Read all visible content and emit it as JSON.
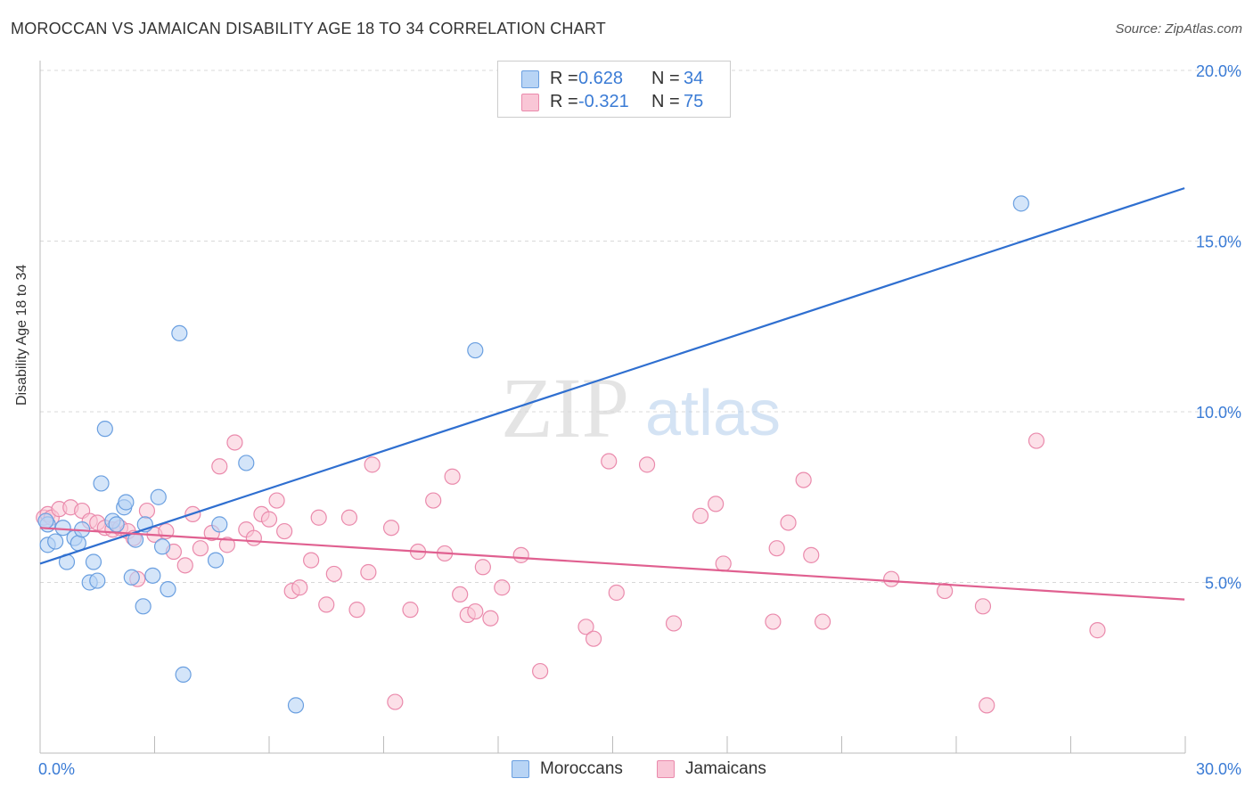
{
  "title": "MOROCCAN VS JAMAICAN DISABILITY AGE 18 TO 34 CORRELATION CHART",
  "source": "Source: ZipAtlas.com",
  "watermark": {
    "zip": "ZIP",
    "atlas": "atlas"
  },
  "legend": {
    "rows": [
      {
        "r_label": "R =",
        "r_value": "0.628",
        "n_label": "N =",
        "n_value": "34"
      },
      {
        "r_label": "R =",
        "r_value": "-0.321",
        "n_label": "N =",
        "n_value": "75"
      }
    ]
  },
  "colors": {
    "moroccans_fill": "#b8d4f5",
    "moroccans_stroke": "#6a9fe0",
    "moroccans_line": "#2f6fd0",
    "jamaicans_fill": "#f9c6d6",
    "jamaicans_stroke": "#ea8aac",
    "jamaicans_line": "#e06090",
    "axis_label": "#3a7bd5",
    "grid": "#d8d8d8"
  },
  "chart_data": {
    "type": "scatter",
    "title": "MOROCCAN VS JAMAICAN DISABILITY AGE 18 TO 34 CORRELATION CHART",
    "xlabel": "",
    "ylabel": "Disability Age 18 to 34",
    "xlim": [
      0,
      30
    ],
    "ylim": [
      0,
      20
    ],
    "x_tick_labels": [
      "0.0%",
      "30.0%"
    ],
    "y_ticks": [
      5,
      10,
      15,
      20
    ],
    "y_tick_labels": [
      "5.0%",
      "10.0%",
      "15.0%",
      "20.0%"
    ],
    "grid": true,
    "series": [
      {
        "name": "Moroccans",
        "color": "#6a9fe0",
        "r": 0.628,
        "n": 34,
        "trend": {
          "x": [
            0,
            29.98
          ],
          "y": [
            5.55,
            16.55
          ]
        },
        "points": [
          [
            0.2,
            6.7
          ],
          [
            0.2,
            6.1
          ],
          [
            0.4,
            6.2
          ],
          [
            0.6,
            6.6
          ],
          [
            0.7,
            5.6
          ],
          [
            0.9,
            6.3
          ],
          [
            1.0,
            6.15
          ],
          [
            1.1,
            6.55
          ],
          [
            1.3,
            5.0
          ],
          [
            1.4,
            5.6
          ],
          [
            1.5,
            5.05
          ],
          [
            1.6,
            7.9
          ],
          [
            1.7,
            9.5
          ],
          [
            1.9,
            6.8
          ],
          [
            2.0,
            6.7
          ],
          [
            2.2,
            7.2
          ],
          [
            2.25,
            7.35
          ],
          [
            2.4,
            5.15
          ],
          [
            2.5,
            6.25
          ],
          [
            2.7,
            4.3
          ],
          [
            2.75,
            6.7
          ],
          [
            2.95,
            5.2
          ],
          [
            3.1,
            7.5
          ],
          [
            3.2,
            6.05
          ],
          [
            3.35,
            4.8
          ],
          [
            3.65,
            12.3
          ],
          [
            3.75,
            2.3
          ],
          [
            4.6,
            5.65
          ],
          [
            4.7,
            6.7
          ],
          [
            5.4,
            8.5
          ],
          [
            6.7,
            1.4
          ],
          [
            11.4,
            11.8
          ],
          [
            25.7,
            16.1
          ],
          [
            0.15,
            6.8
          ]
        ]
      },
      {
        "name": "Jamaicans",
        "color": "#ea8aac",
        "r": -0.321,
        "n": 75,
        "trend": {
          "x": [
            0,
            29.98
          ],
          "y": [
            6.6,
            4.5
          ]
        },
        "points": [
          [
            0.1,
            6.9
          ],
          [
            0.2,
            7.0
          ],
          [
            0.3,
            6.9
          ],
          [
            0.5,
            7.15
          ],
          [
            0.8,
            7.2
          ],
          [
            1.1,
            7.1
          ],
          [
            1.3,
            6.8
          ],
          [
            1.5,
            6.75
          ],
          [
            1.7,
            6.6
          ],
          [
            1.9,
            6.55
          ],
          [
            2.1,
            6.6
          ],
          [
            2.3,
            6.5
          ],
          [
            2.45,
            6.3
          ],
          [
            2.55,
            5.1
          ],
          [
            2.8,
            7.1
          ],
          [
            3.0,
            6.4
          ],
          [
            3.3,
            6.5
          ],
          [
            3.5,
            5.9
          ],
          [
            3.8,
            5.5
          ],
          [
            4.0,
            7.0
          ],
          [
            4.2,
            6.0
          ],
          [
            4.5,
            6.45
          ],
          [
            4.7,
            8.4
          ],
          [
            4.9,
            6.1
          ],
          [
            5.1,
            9.1
          ],
          [
            5.4,
            6.55
          ],
          [
            5.6,
            6.3
          ],
          [
            5.8,
            7.0
          ],
          [
            6.0,
            6.85
          ],
          [
            6.2,
            7.4
          ],
          [
            6.4,
            6.5
          ],
          [
            6.6,
            4.75
          ],
          [
            6.8,
            4.85
          ],
          [
            7.1,
            5.65
          ],
          [
            7.3,
            6.9
          ],
          [
            7.5,
            4.35
          ],
          [
            7.7,
            5.25
          ],
          [
            8.1,
            6.9
          ],
          [
            8.3,
            4.2
          ],
          [
            8.6,
            5.3
          ],
          [
            8.7,
            8.45
          ],
          [
            9.2,
            6.6
          ],
          [
            9.3,
            1.5
          ],
          [
            9.7,
            4.2
          ],
          [
            9.9,
            5.9
          ],
          [
            10.3,
            7.4
          ],
          [
            10.6,
            5.85
          ],
          [
            10.8,
            8.1
          ],
          [
            11.0,
            4.65
          ],
          [
            11.2,
            4.05
          ],
          [
            11.4,
            4.15
          ],
          [
            11.6,
            5.45
          ],
          [
            11.8,
            3.95
          ],
          [
            12.1,
            4.85
          ],
          [
            12.6,
            5.8
          ],
          [
            13.1,
            2.4
          ],
          [
            14.3,
            3.7
          ],
          [
            14.5,
            3.35
          ],
          [
            14.9,
            8.55
          ],
          [
            15.1,
            4.7
          ],
          [
            15.9,
            8.45
          ],
          [
            16.6,
            3.8
          ],
          [
            17.3,
            6.95
          ],
          [
            17.7,
            7.3
          ],
          [
            17.9,
            5.55
          ],
          [
            19.2,
            3.85
          ],
          [
            19.3,
            6.0
          ],
          [
            19.6,
            6.75
          ],
          [
            20.0,
            8.0
          ],
          [
            20.2,
            5.8
          ],
          [
            20.5,
            3.85
          ],
          [
            22.3,
            5.1
          ],
          [
            23.7,
            4.75
          ],
          [
            24.7,
            4.3
          ],
          [
            26.1,
            9.15
          ]
        ],
        "extra_points": [
          [
            24.8,
            1.4
          ],
          [
            27.7,
            3.6
          ]
        ]
      }
    ]
  }
}
